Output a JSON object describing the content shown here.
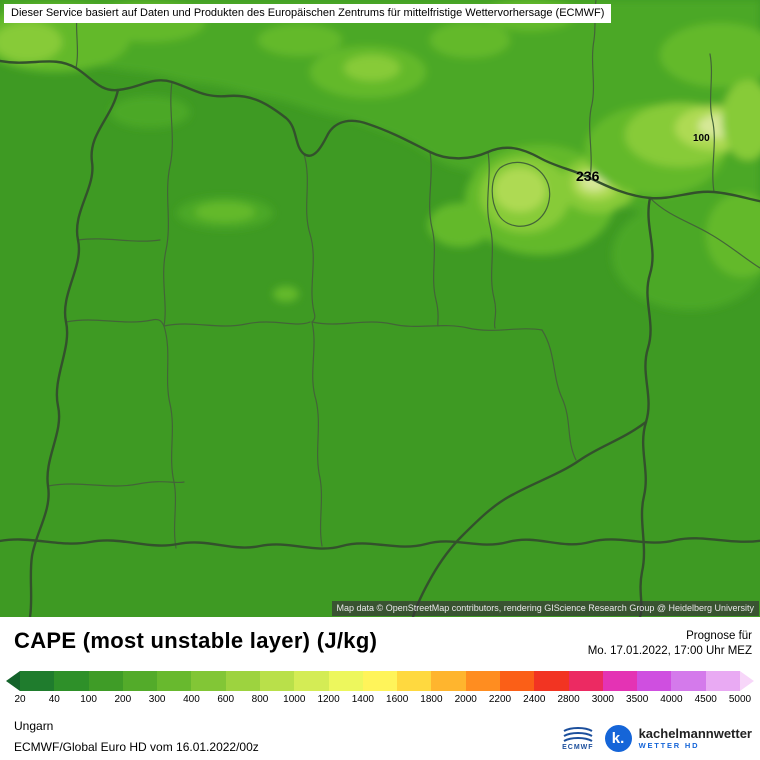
{
  "banner": {
    "text": "Dieser Service basiert auf Daten und Produkten des Europäischen Zentrums für mittelfristige Wettervorhersage (ECMWF)"
  },
  "map": {
    "attribution": "Map data © OpenStreetMap contributors, rendering GIScience Research Group @ Heidelberg University",
    "value_labels": [
      {
        "text": "236"
      },
      {
        "text": "100"
      }
    ],
    "palette": {
      "g1": "#3e9a23",
      "g2": "#4ca827",
      "g3": "#63b92c",
      "g4": "#87cb38",
      "g5": "#aeda52",
      "g6": "#d6e897",
      "border_thick": "#33512c",
      "border_thin": "#436438",
      "brand_blue": "#1565d8"
    }
  },
  "footer": {
    "title": "CAPE (most unstable layer) (J/kg)",
    "prognose_label": "Prognose für",
    "prognose_time": "Mo. 17.01.2022, 17:00 Uhr MEZ",
    "region": "Ungarn",
    "model_info": "ECMWF/Global Euro HD vom 16.01.2022/00z"
  },
  "colorbar": {
    "unit": "J/kg",
    "tick_labels": [
      "20",
      "40",
      "100",
      "200",
      "300",
      "400",
      "600",
      "800",
      "1000",
      "1200",
      "1400",
      "1600",
      "1800",
      "2000",
      "2200",
      "2400",
      "2800",
      "3000",
      "3500",
      "4000",
      "4500",
      "5000"
    ],
    "left_arrow_color": "#14632b",
    "segment_colors": [
      "#1f7c2d",
      "#2e9029",
      "#3f9c27",
      "#53ab2a",
      "#68b92e",
      "#82c636",
      "#9dd33f",
      "#b9e04a",
      "#d4ec55",
      "#edf75d",
      "#fff45a",
      "#ffd93f",
      "#ffb52e",
      "#ff8d20",
      "#fb5f17",
      "#f23422",
      "#ec2a62",
      "#e433b4",
      "#cf4fe0",
      "#d47aeb",
      "#e9aaf3"
    ],
    "right_arrow_color": "#f7d6f9"
  },
  "branding": {
    "ecmwf_label": "ECMWF",
    "kachelmann_icon": "k.",
    "kachelmann_name": "kachelmannwetter",
    "kachelmann_sub": "WETTER HD"
  }
}
